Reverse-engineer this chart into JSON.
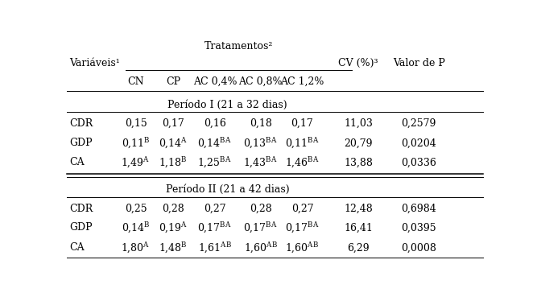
{
  "title": "Tratamentos²",
  "header_left": "Variáveis¹",
  "header_cols": [
    "CN",
    "CP",
    "AC 0,4%",
    "AC 0,8%",
    "AC 1,2%"
  ],
  "header_right1": "CV (%)³",
  "header_right2": "Valor de P",
  "period1_label": "Período I (21 a 32 dias)",
  "period2_label": "Período II (21 a 42 dias)",
  "rows_p1": [
    {
      "var": "CDR",
      "vals": [
        "0,15",
        "0,17",
        "0,16",
        "0,18",
        "0,17"
      ],
      "sups": [
        "",
        "",
        "",
        "",
        ""
      ],
      "cv": "11,03",
      "p": "0,2579"
    },
    {
      "var": "GDP",
      "vals": [
        "0,11",
        "0,14",
        "0,14",
        "0,13",
        "0,11"
      ],
      "sups": [
        "B",
        "A",
        "BA",
        "BA",
        "BA"
      ],
      "cv": "20,79",
      "p": "0,0204"
    },
    {
      "var": "CA",
      "vals": [
        "1,49",
        "1,18",
        "1,25",
        "1,43",
        "1,46"
      ],
      "sups": [
        "A",
        "B",
        "BA",
        "BA",
        "BA"
      ],
      "cv": "13,88",
      "p": "0,0336"
    }
  ],
  "rows_p2": [
    {
      "var": "CDR",
      "vals": [
        "0,25",
        "0,28",
        "0,27",
        "0,28",
        "0,27"
      ],
      "sups": [
        "",
        "",
        "",
        "",
        ""
      ],
      "cv": "12,48",
      "p": "0,6984"
    },
    {
      "var": "GDP",
      "vals": [
        "0,14",
        "0,19",
        "0,17",
        "0,17",
        "0,17"
      ],
      "sups": [
        "B",
        "A",
        "BA",
        "BA",
        "BA"
      ],
      "cv": "16,41",
      "p": "0,0395"
    },
    {
      "var": "CA",
      "vals": [
        "1,80",
        "1,48",
        "1,61",
        "1,60",
        "1,60"
      ],
      "sups": [
        "A",
        "B",
        "AB",
        "AB",
        "AB"
      ],
      "cv": "6,29",
      "p": "0,0008"
    }
  ],
  "font_size": 9.0,
  "background": "#ffffff"
}
